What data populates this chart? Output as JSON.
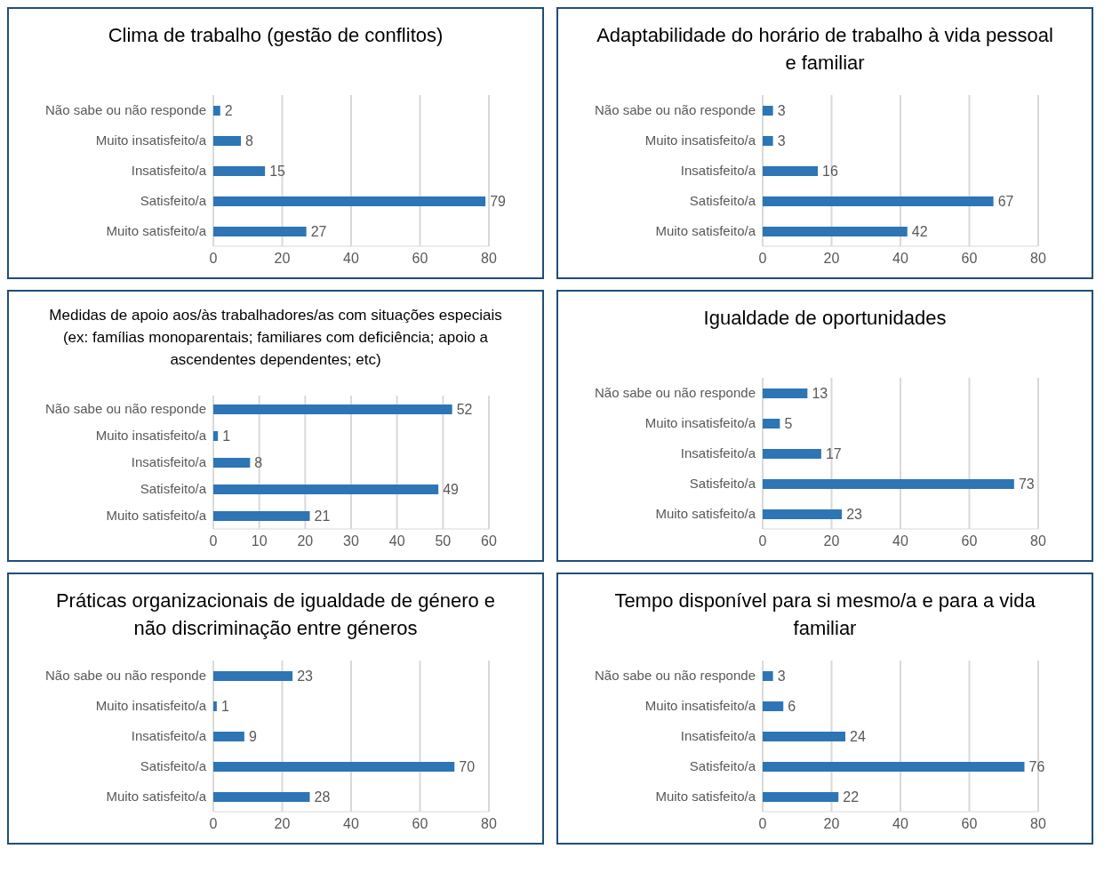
{
  "chart_data": [
    {
      "type": "bar",
      "orientation": "horizontal",
      "title": "Clima de trabalho (gestão de conflitos)",
      "categories": [
        "Não sabe ou não responde",
        "Muito insatisfeito/a",
        "Insatisfeito/a",
        "Satisfeito/a",
        "Muito satisfeito/a"
      ],
      "values": [
        2,
        8,
        15,
        79,
        27
      ],
      "color": "#2e75b6",
      "xlim": [
        0,
        80
      ],
      "xticks": [
        0,
        20,
        40,
        60,
        80
      ],
      "grid": "x",
      "data_labels": true
    },
    {
      "type": "bar",
      "orientation": "horizontal",
      "title": "Adaptabilidade do horário de trabalho à vida pessoal e familiar",
      "categories": [
        "Não sabe ou não responde",
        "Muito insatisfeito/a",
        "Insatisfeito/a",
        "Satisfeito/a",
        "Muito satisfeito/a"
      ],
      "values": [
        3,
        3,
        16,
        67,
        42
      ],
      "color": "#2e75b6",
      "xlim": [
        0,
        80
      ],
      "xticks": [
        0,
        20,
        40,
        60,
        80
      ],
      "grid": "x",
      "data_labels": true
    },
    {
      "type": "bar",
      "orientation": "horizontal",
      "title": "Medidas de apoio aos/às trabalhadores/as com situações especiais (ex: famílias monoparentais; familiares com deficiência; apoio a ascendentes dependentes; etc)",
      "categories": [
        "Não sabe ou não responde",
        "Muito insatisfeito/a",
        "Insatisfeito/a",
        "Satisfeito/a",
        "Muito satisfeito/a"
      ],
      "values": [
        52,
        1,
        8,
        49,
        21
      ],
      "color": "#2e75b6",
      "xlim": [
        0,
        60
      ],
      "xticks": [
        0,
        10,
        20,
        30,
        40,
        50,
        60
      ],
      "grid": "x",
      "data_labels": true
    },
    {
      "type": "bar",
      "orientation": "horizontal",
      "title": "Igualdade de oportunidades",
      "categories": [
        "Não sabe ou não responde",
        "Muito insatisfeito/a",
        "Insatisfeito/a",
        "Satisfeito/a",
        "Muito satisfeito/a"
      ],
      "values": [
        13,
        5,
        17,
        73,
        23
      ],
      "color": "#2e75b6",
      "xlim": [
        0,
        80
      ],
      "xticks": [
        0,
        20,
        40,
        60,
        80
      ],
      "grid": "x",
      "data_labels": true
    },
    {
      "type": "bar",
      "orientation": "horizontal",
      "title": "Práticas organizacionais de igualdade de género e não discriminação entre géneros",
      "categories": [
        "Não sabe ou não responde",
        "Muito insatisfeito/a",
        "Insatisfeito/a",
        "Satisfeito/a",
        "Muito satisfeito/a"
      ],
      "values": [
        23,
        1,
        9,
        70,
        28
      ],
      "color": "#2e75b6",
      "xlim": [
        0,
        80
      ],
      "xticks": [
        0,
        20,
        40,
        60,
        80
      ],
      "grid": "x",
      "data_labels": true
    },
    {
      "type": "bar",
      "orientation": "horizontal",
      "title": "Tempo disponível para si mesmo/a e para a vida familiar",
      "categories": [
        "Não sabe ou não responde",
        "Muito insatisfeito/a",
        "Insatisfeito/a",
        "Satisfeito/a",
        "Muito satisfeito/a"
      ],
      "values": [
        3,
        6,
        24,
        76,
        22
      ],
      "color": "#2e75b6",
      "xlim": [
        0,
        80
      ],
      "xticks": [
        0,
        20,
        40,
        60,
        80
      ],
      "grid": "x",
      "data_labels": true
    }
  ]
}
